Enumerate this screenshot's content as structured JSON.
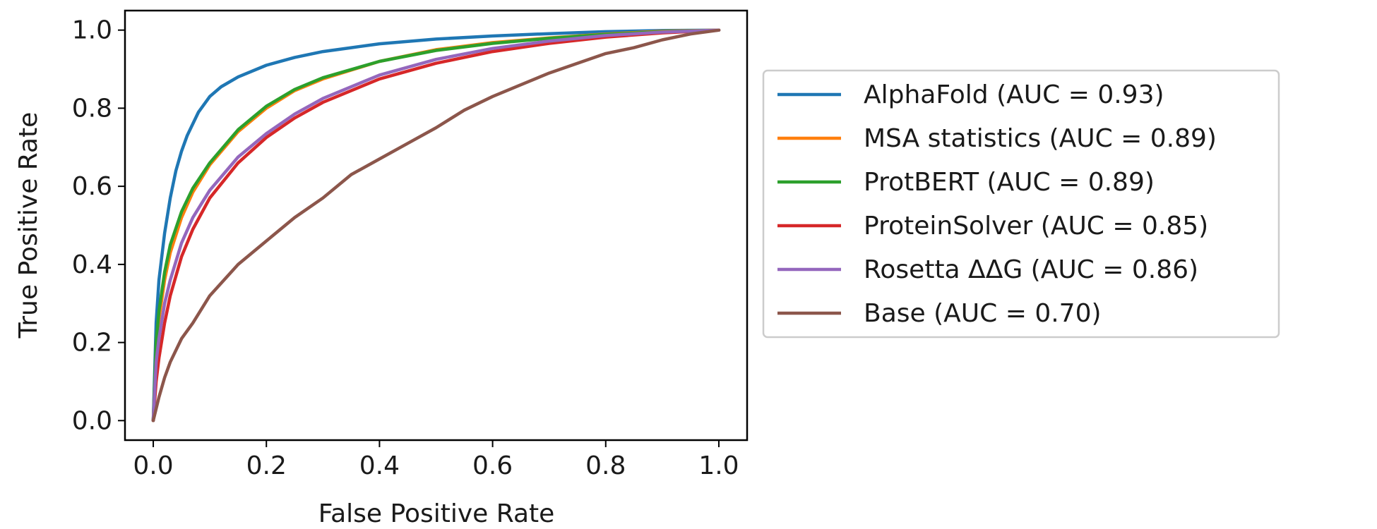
{
  "chart_data": {
    "type": "line",
    "title": "",
    "xlabel": "False Positive Rate",
    "ylabel": "True Positive Rate",
    "xlim": [
      -0.05,
      1.05
    ],
    "ylim": [
      -0.05,
      1.05
    ],
    "xticks": [
      0.0,
      0.2,
      0.4,
      0.6,
      0.8,
      1.0
    ],
    "yticks": [
      0.0,
      0.2,
      0.4,
      0.6,
      0.8,
      1.0
    ],
    "xtick_labels": [
      "0.0",
      "0.2",
      "0.4",
      "0.6",
      "0.8",
      "1.0"
    ],
    "ytick_labels": [
      "0.0",
      "0.2",
      "0.4",
      "0.6",
      "0.8",
      "1.0"
    ],
    "grid": false,
    "legend_position": "outside-right",
    "series": [
      {
        "name": "AlphaFold (AUC = 0.93)",
        "color": "#1f77b4",
        "x": [
          0,
          0.005,
          0.01,
          0.02,
          0.03,
          0.04,
          0.05,
          0.06,
          0.08,
          0.1,
          0.12,
          0.15,
          0.2,
          0.25,
          0.3,
          0.35,
          0.4,
          0.5,
          0.6,
          0.7,
          0.8,
          0.9,
          1.0
        ],
        "y": [
          0,
          0.25,
          0.36,
          0.48,
          0.57,
          0.64,
          0.69,
          0.73,
          0.79,
          0.83,
          0.855,
          0.88,
          0.91,
          0.93,
          0.945,
          0.955,
          0.965,
          0.977,
          0.985,
          0.991,
          0.996,
          0.999,
          1.0
        ]
      },
      {
        "name": "MSA statistics (AUC = 0.89)",
        "color": "#ff7f0e",
        "x": [
          0,
          0.005,
          0.01,
          0.02,
          0.03,
          0.05,
          0.07,
          0.1,
          0.15,
          0.2,
          0.25,
          0.3,
          0.4,
          0.5,
          0.6,
          0.7,
          0.8,
          0.9,
          1.0
        ],
        "y": [
          0,
          0.18,
          0.26,
          0.36,
          0.43,
          0.52,
          0.585,
          0.655,
          0.74,
          0.8,
          0.845,
          0.875,
          0.92,
          0.95,
          0.968,
          0.98,
          0.99,
          0.997,
          1.0
        ]
      },
      {
        "name": "ProtBERT (AUC = 0.89)",
        "color": "#2ca02c",
        "x": [
          0,
          0.005,
          0.01,
          0.02,
          0.03,
          0.05,
          0.07,
          0.1,
          0.15,
          0.2,
          0.25,
          0.3,
          0.4,
          0.5,
          0.6,
          0.7,
          0.8,
          0.9,
          1.0
        ],
        "y": [
          0,
          0.2,
          0.28,
          0.38,
          0.45,
          0.535,
          0.595,
          0.66,
          0.745,
          0.805,
          0.848,
          0.878,
          0.92,
          0.948,
          0.966,
          0.979,
          0.989,
          0.996,
          1.0
        ]
      },
      {
        "name": "ProteinSolver (AUC = 0.85)",
        "color": "#d62728",
        "x": [
          0,
          0.005,
          0.01,
          0.02,
          0.03,
          0.05,
          0.07,
          0.1,
          0.15,
          0.2,
          0.25,
          0.3,
          0.4,
          0.5,
          0.6,
          0.7,
          0.8,
          0.9,
          1.0
        ],
        "y": [
          0,
          0.1,
          0.16,
          0.25,
          0.32,
          0.42,
          0.49,
          0.57,
          0.66,
          0.725,
          0.775,
          0.815,
          0.875,
          0.915,
          0.945,
          0.966,
          0.982,
          0.993,
          1.0
        ]
      },
      {
        "name": "Rosetta ΔΔG (AUC = 0.86)",
        "color": "#9467bd",
        "x": [
          0,
          0.005,
          0.01,
          0.02,
          0.03,
          0.05,
          0.07,
          0.1,
          0.15,
          0.2,
          0.25,
          0.3,
          0.4,
          0.5,
          0.6,
          0.7,
          0.8,
          0.9,
          1.0
        ],
        "y": [
          0,
          0.15,
          0.21,
          0.3,
          0.36,
          0.455,
          0.52,
          0.59,
          0.675,
          0.735,
          0.785,
          0.825,
          0.885,
          0.925,
          0.953,
          0.972,
          0.986,
          0.995,
          1.0
        ]
      },
      {
        "name": "Base (AUC = 0.70)",
        "color": "#8c564b",
        "x": [
          0,
          0.01,
          0.02,
          0.03,
          0.05,
          0.07,
          0.1,
          0.15,
          0.2,
          0.25,
          0.3,
          0.35,
          0.4,
          0.45,
          0.5,
          0.55,
          0.6,
          0.65,
          0.7,
          0.75,
          0.8,
          0.85,
          0.9,
          0.95,
          1.0
        ],
        "y": [
          0,
          0.06,
          0.11,
          0.15,
          0.21,
          0.25,
          0.32,
          0.4,
          0.46,
          0.52,
          0.57,
          0.63,
          0.67,
          0.71,
          0.75,
          0.795,
          0.83,
          0.86,
          0.89,
          0.915,
          0.94,
          0.955,
          0.975,
          0.99,
          1.0
        ]
      }
    ]
  }
}
